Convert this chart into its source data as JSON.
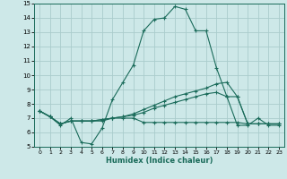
{
  "xlabel": "Humidex (Indice chaleur)",
  "x_ticks": [
    0,
    1,
    2,
    3,
    4,
    5,
    6,
    7,
    8,
    9,
    10,
    11,
    12,
    13,
    14,
    15,
    16,
    17,
    18,
    19,
    20,
    21,
    22,
    23
  ],
  "ylim": [
    5,
    15
  ],
  "xlim": [
    -0.5,
    23.5
  ],
  "yticks": [
    5,
    6,
    7,
    8,
    9,
    10,
    11,
    12,
    13,
    14,
    15
  ],
  "bg_color": "#cde8e8",
  "grid_color": "#aacccc",
  "line_color": "#1a6b5a",
  "lines": [
    {
      "x": [
        0,
        1,
        2,
        3,
        4,
        5,
        6,
        7,
        8,
        9,
        10,
        11,
        12,
        13,
        14,
        15,
        16,
        17,
        18,
        19,
        20,
        21,
        22,
        23
      ],
      "y": [
        7.5,
        7.1,
        6.5,
        7.0,
        5.3,
        5.2,
        6.3,
        8.3,
        9.5,
        10.7,
        13.1,
        13.9,
        14.0,
        14.8,
        14.6,
        13.1,
        13.1,
        10.5,
        8.5,
        6.5,
        6.5,
        7.0,
        6.5,
        6.5
      ]
    },
    {
      "x": [
        0,
        1,
        2,
        3,
        4,
        5,
        6,
        7,
        8,
        9,
        10,
        11,
        12,
        13,
        14,
        15,
        16,
        17,
        18,
        19,
        20,
        21,
        22,
        23
      ],
      "y": [
        7.5,
        7.1,
        6.6,
        6.8,
        6.8,
        6.8,
        6.9,
        7.0,
        7.1,
        7.3,
        7.6,
        7.9,
        8.2,
        8.5,
        8.7,
        8.9,
        9.1,
        9.4,
        9.5,
        8.5,
        6.6,
        6.6,
        6.6,
        6.6
      ]
    },
    {
      "x": [
        0,
        1,
        2,
        3,
        4,
        5,
        6,
        7,
        8,
        9,
        10,
        11,
        12,
        13,
        14,
        15,
        16,
        17,
        18,
        19,
        20,
        21,
        22,
        23
      ],
      "y": [
        7.5,
        7.1,
        6.6,
        6.8,
        6.8,
        6.8,
        6.9,
        7.0,
        7.1,
        7.2,
        7.4,
        7.7,
        7.9,
        8.1,
        8.3,
        8.5,
        8.7,
        8.8,
        8.5,
        8.5,
        6.6,
        6.6,
        6.6,
        6.6
      ]
    },
    {
      "x": [
        0,
        1,
        2,
        3,
        4,
        5,
        6,
        7,
        8,
        9,
        10,
        11,
        12,
        13,
        14,
        15,
        16,
        17,
        18,
        19,
        20,
        21,
        22,
        23
      ],
      "y": [
        7.5,
        7.1,
        6.6,
        6.8,
        6.8,
        6.8,
        6.8,
        7.0,
        7.0,
        7.0,
        6.7,
        6.7,
        6.7,
        6.7,
        6.7,
        6.7,
        6.7,
        6.7,
        6.7,
        6.7,
        6.6,
        6.6,
        6.6,
        6.6
      ]
    }
  ]
}
